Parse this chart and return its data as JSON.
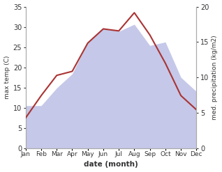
{
  "months": [
    1,
    2,
    3,
    4,
    5,
    6,
    7,
    8,
    9,
    10,
    11,
    12
  ],
  "month_labels": [
    "Jan",
    "Feb",
    "Mar",
    "Apr",
    "May",
    "Jun",
    "Jul",
    "Aug",
    "Sep",
    "Oct",
    "Nov",
    "Dec"
  ],
  "temp": [
    7.5,
    13.0,
    18.0,
    19.0,
    26.0,
    29.5,
    29.0,
    33.5,
    28.0,
    21.0,
    13.0,
    9.5
  ],
  "precip": [
    6.0,
    6.0,
    8.5,
    10.5,
    15.0,
    17.0,
    16.5,
    17.5,
    14.5,
    15.0,
    10.0,
    8.0
  ],
  "temp_color": "#aa3333",
  "precip_fill_color": "#c5c8e8",
  "temp_ylim": [
    0,
    35
  ],
  "precip_ylim": [
    0,
    20
  ],
  "precip_yticks": [
    0,
    5,
    10,
    15,
    20
  ],
  "temp_yticks": [
    0,
    5,
    10,
    15,
    20,
    25,
    30,
    35
  ],
  "xlabel": "date (month)",
  "ylabel_left": "max temp (C)",
  "ylabel_right": "med. precipitation (kg/m2)",
  "figsize": [
    3.18,
    2.47
  ],
  "dpi": 100
}
